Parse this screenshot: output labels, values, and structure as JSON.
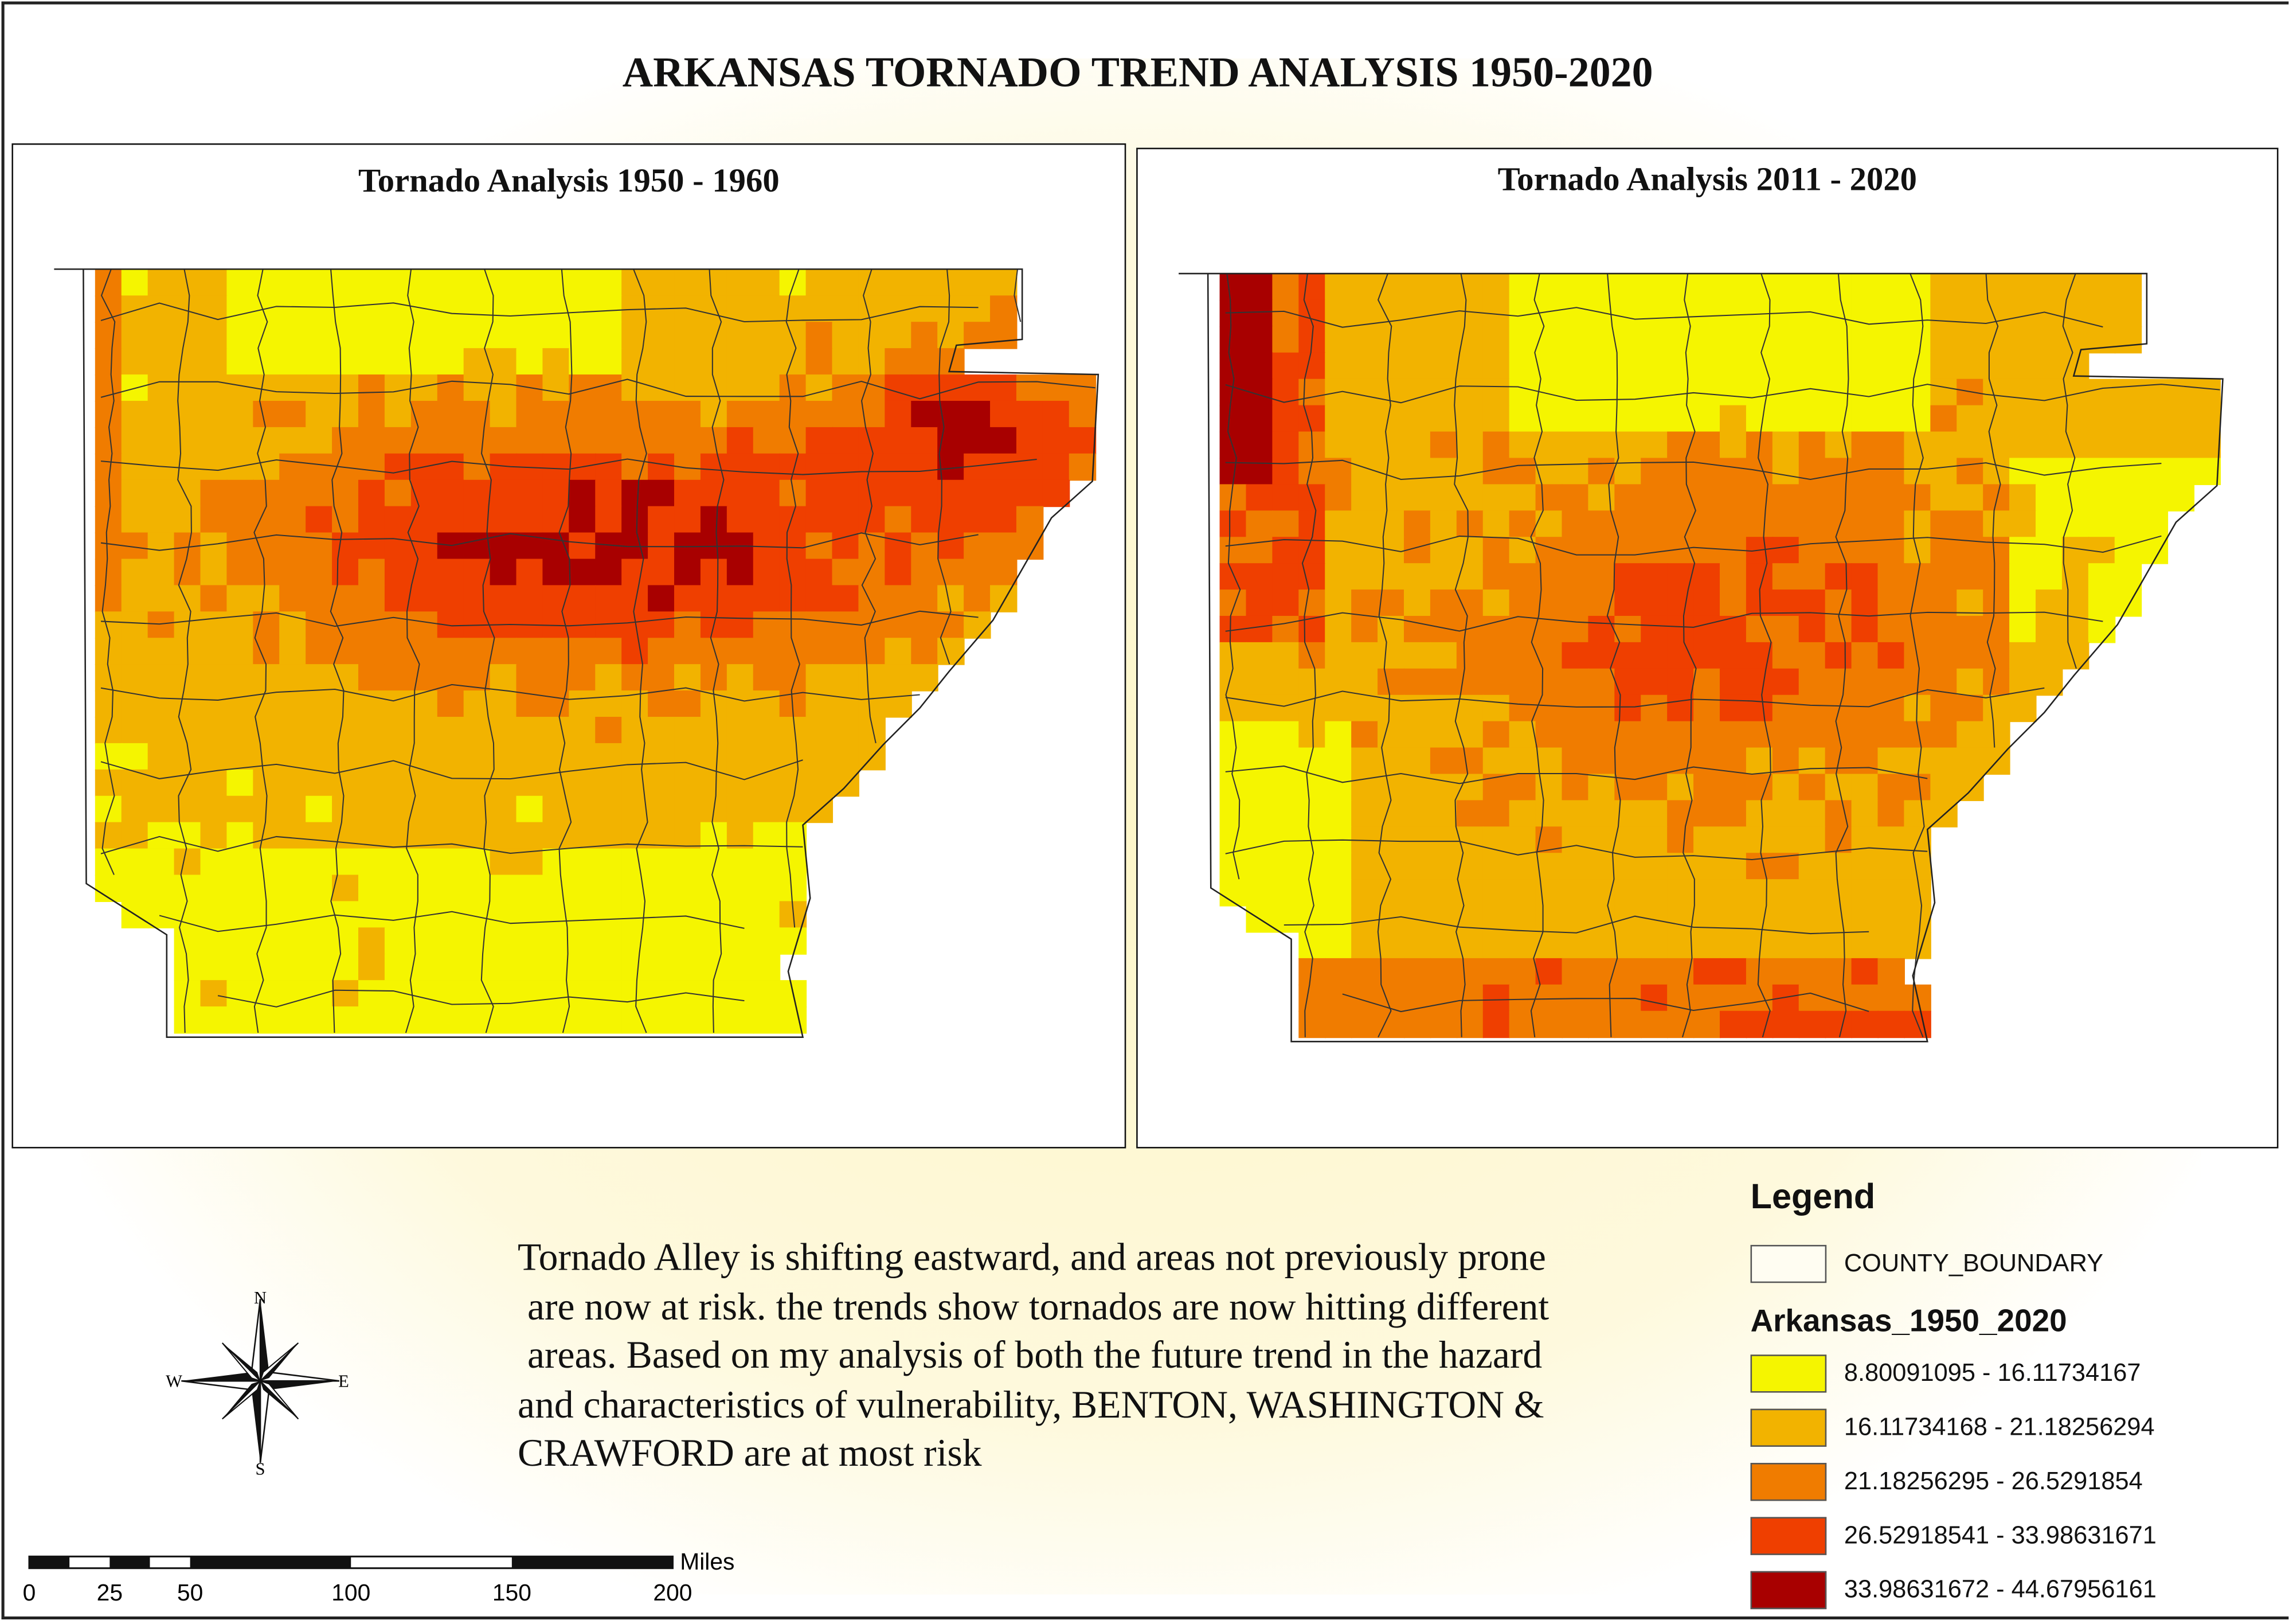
{
  "title": "ARKANSAS TORNADO TREND ANALYSIS 1950-2020",
  "maps": [
    {
      "title": "Tornado Analysis 1950 - 1960"
    },
    {
      "title": "Tornado Analysis 2011 - 2020"
    }
  ],
  "description": "Tornado Alley is shifting eastward, and areas not previously prone are now at risk. the trends show tornados are now hitting different areas. Based on my analysis of both the future trend in the hazard and characteristics of vulnerability, BENTON, WASHINGTON & CRAWFORD are at most risk",
  "description_lines": [
    "Tornado Alley is shifting eastward, and areas not previously prone",
    " are now at risk. the trends show tornados are now hitting different",
    " areas. Based on my analysis of both the future trend in the hazard",
    "and characteristics of vulnerability, BENTON, WASHINGTON &",
    "CRAWFORD are at most risk"
  ],
  "legend": {
    "title": "Legend",
    "boundary_label": "COUNTY_BOUNDARY",
    "raster_title": "Arkansas_1950_2020",
    "classes": [
      {
        "label": "8.80091095 - 16.11734167",
        "color": "#f5f500"
      },
      {
        "label": "16.11734168 - 21.18256294",
        "color": "#f2b300"
      },
      {
        "label": "21.18256295 - 26.5291854",
        "color": "#f07c00"
      },
      {
        "label": "26.52918541 - 33.98631671",
        "color": "#ef3f00"
      },
      {
        "label": "33.98631672 - 44.67956161",
        "color": "#a80000"
      }
    ]
  },
  "north_arrow": {
    "n": "N",
    "s": "S",
    "e": "E",
    "w": "W"
  },
  "scale_bar": {
    "unit": "Miles",
    "ticks": [
      "0",
      "25",
      "50",
      "100",
      "150",
      "200"
    ]
  }
}
